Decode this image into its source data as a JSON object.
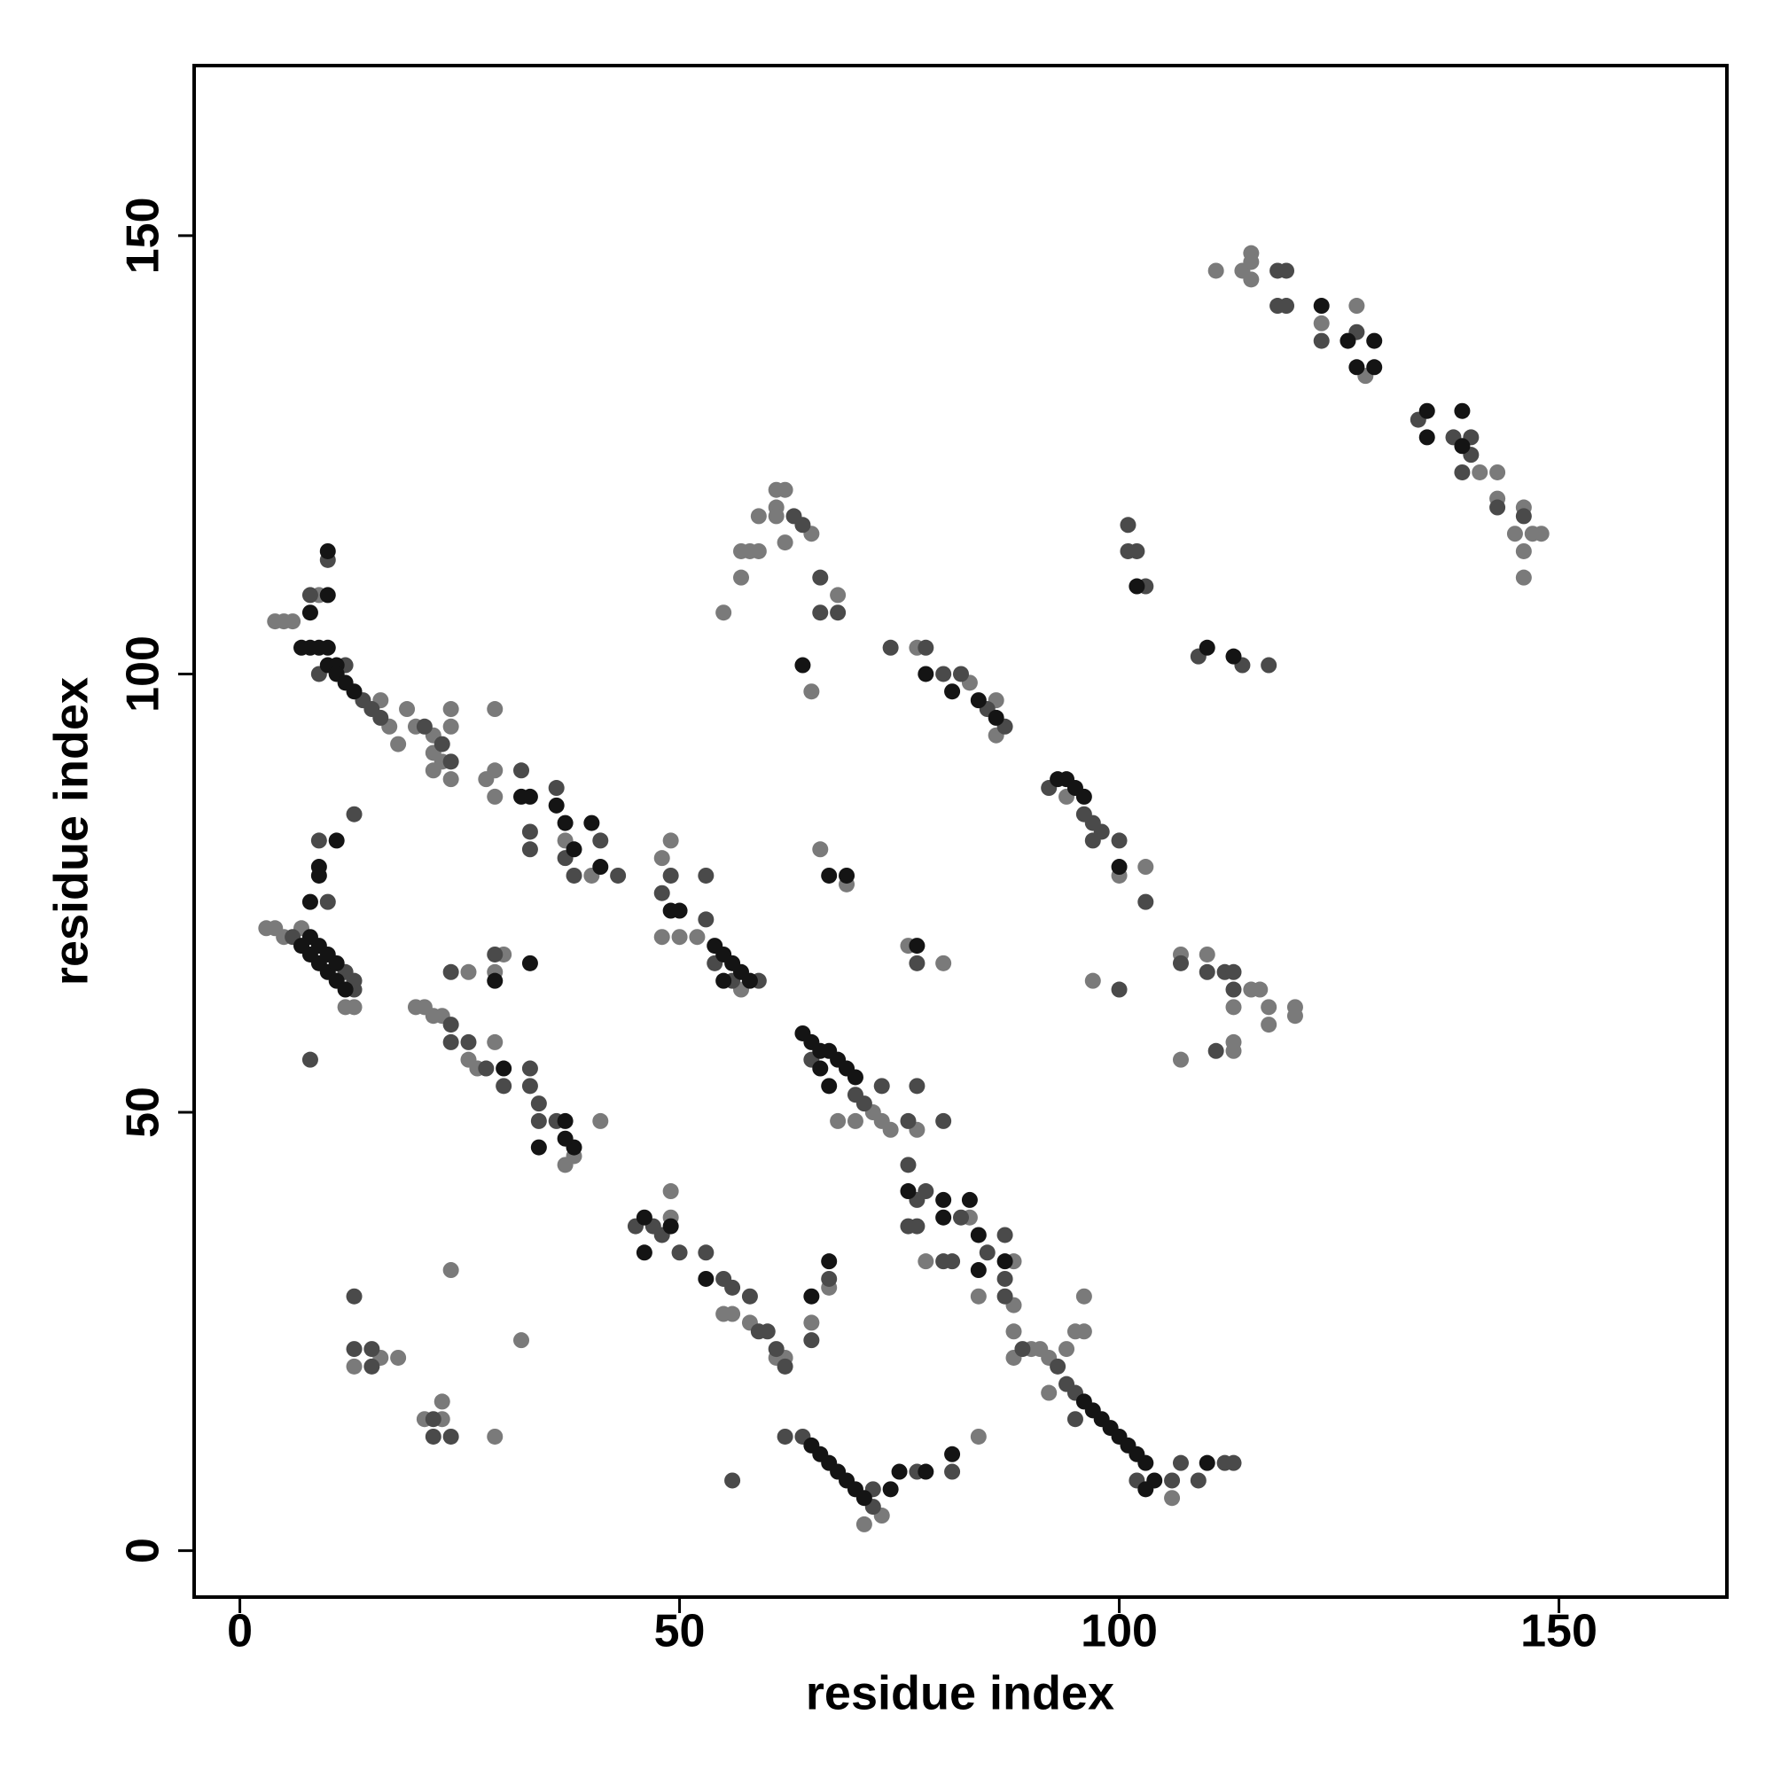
{
  "chart_data": {
    "type": "scatter",
    "xlabel": "residue index",
    "ylabel": "residue index",
    "xlim": [
      -5.2,
      169.1
    ],
    "ylim": [
      -5.3,
      169.4
    ],
    "xticks": [
      0,
      50,
      100,
      150
    ],
    "yticks": [
      0,
      50,
      100,
      150
    ],
    "series": [
      {
        "color": "#7a7a7a",
        "x": [
          3,
          4,
          5,
          7,
          12,
          13,
          4,
          5,
          6,
          16,
          17,
          9,
          19,
          20,
          22,
          23,
          24,
          24,
          24,
          22,
          22,
          29,
          18,
          28,
          29,
          29,
          40,
          37,
          48,
          49,
          48,
          50,
          52,
          57,
          20,
          21,
          22,
          23,
          26,
          27,
          29,
          37,
          38,
          41,
          26,
          29,
          30,
          72,
          73,
          74,
          70,
          77,
          68,
          83,
          88,
          78,
          88,
          84,
          88,
          90,
          91,
          92,
          94,
          95,
          96,
          92,
          106,
          88,
          96,
          49,
          49,
          55,
          56,
          58,
          61,
          62,
          71,
          73,
          84,
          65,
          67,
          16,
          13,
          18,
          21,
          23,
          23,
          24,
          29,
          32,
          55,
          57,
          57,
          58,
          59,
          59,
          61,
          61,
          62,
          61,
          62,
          65,
          68,
          65,
          66,
          69,
          77,
          83,
          86,
          86,
          94,
          100,
          103,
          76,
          80,
          97,
          107,
          110,
          113,
          115,
          116,
          117,
          117,
          120,
          120,
          107,
          113,
          113,
          111,
          114,
          115,
          115,
          115,
          127,
          128,
          123,
          141,
          143,
          143,
          146,
          145,
          146,
          147,
          148,
          146
        ],
        "values": [
          71,
          71,
          70,
          71,
          62,
          62,
          106,
          106,
          106,
          97,
          94,
          109,
          96,
          94,
          93,
          90,
          88,
          96,
          94,
          91,
          89,
          96,
          92,
          88,
          89,
          86,
          77,
          81,
          79,
          81,
          70,
          70,
          70,
          64,
          62,
          62,
          61,
          61,
          56,
          55,
          58,
          44,
          45,
          49,
          66,
          66,
          68,
          50,
          49,
          48,
          49,
          48,
          49,
          38,
          33,
          33,
          28,
          29,
          25,
          23,
          23,
          22,
          23,
          25,
          25,
          18,
          6,
          22,
          29,
          38,
          41,
          27,
          27,
          26,
          22,
          22,
          3,
          4,
          13,
          26,
          30,
          22,
          21,
          22,
          15,
          15,
          17,
          32,
          13,
          24,
          107,
          111,
          114,
          114,
          114,
          118,
          119,
          121,
          121,
          118,
          115,
          116,
          109,
          98,
          80,
          76,
          103,
          99,
          93,
          97,
          86,
          77,
          78,
          69,
          67,
          65,
          68,
          68,
          62,
          64,
          64,
          62,
          60,
          62,
          61,
          56,
          58,
          57,
          146,
          146,
          148,
          147,
          145,
          142,
          134,
          140,
          123,
          123,
          120,
          119,
          116,
          114,
          116,
          116,
          111
        ]
      },
      {
        "color": "#4a4a4a",
        "x": [
          6,
          13,
          13,
          12,
          10,
          9,
          13,
          8,
          14,
          15,
          16,
          12,
          9,
          8,
          10,
          21,
          23,
          24,
          32,
          33,
          33,
          36,
          37,
          38,
          41,
          43,
          49,
          48,
          53,
          53,
          54,
          56,
          59,
          24,
          24,
          26,
          28,
          30,
          33,
          33,
          34,
          34,
          36,
          24,
          29,
          65,
          70,
          71,
          73,
          77,
          76,
          80,
          76,
          77,
          78,
          82,
          85,
          87,
          76,
          77,
          80,
          81,
          87,
          87,
          89,
          93,
          94,
          95,
          95,
          102,
          106,
          107,
          109,
          112,
          113,
          45,
          47,
          48,
          50,
          53,
          55,
          56,
          58,
          59,
          60,
          61,
          62,
          62,
          64,
          72,
          72,
          77,
          81,
          56,
          65,
          67,
          13,
          13,
          15,
          15,
          22,
          24,
          22,
          63,
          64,
          66,
          66,
          68,
          78,
          74,
          80,
          82,
          85,
          87,
          77,
          92,
          96,
          97,
          98,
          100,
          103,
          97,
          107,
          110,
          112,
          113,
          113,
          100,
          111,
          101,
          101,
          102,
          103,
          109,
          114,
          117,
          118,
          119,
          118,
          119,
          123,
          127,
          134,
          138,
          139,
          140,
          143,
          146,
          140
        ],
        "values": [
          70,
          64,
          65,
          66,
          74,
          81,
          84,
          56,
          97,
          96,
          95,
          101,
          100,
          109,
          113,
          94,
          92,
          90,
          89,
          82,
          80,
          87,
          79,
          77,
          81,
          77,
          77,
          75,
          77,
          72,
          67,
          65,
          65,
          60,
          58,
          58,
          55,
          53,
          55,
          53,
          51,
          49,
          49,
          66,
          68,
          56,
          52,
          51,
          53,
          53,
          49,
          49,
          44,
          40,
          41,
          38,
          34,
          36,
          37,
          37,
          33,
          33,
          31,
          29,
          23,
          21,
          19,
          18,
          15,
          8,
          8,
          10,
          8,
          10,
          10,
          37,
          37,
          36,
          34,
          34,
          31,
          30,
          29,
          25,
          25,
          23,
          21,
          13,
          13,
          5,
          7,
          9,
          9,
          8,
          24,
          31,
          29,
          23,
          23,
          21,
          15,
          13,
          13,
          118,
          117,
          111,
          107,
          107,
          103,
          103,
          100,
          100,
          96,
          94,
          67,
          87,
          84,
          83,
          82,
          81,
          74,
          81,
          67,
          66,
          66,
          66,
          64,
          64,
          57,
          117,
          114,
          114,
          110,
          102,
          101,
          101,
          146,
          146,
          142,
          142,
          138,
          139,
          129,
          127,
          123,
          125,
          119,
          118,
          127
        ]
      },
      {
        "color": "#141414",
        "x": [
          7,
          8,
          9,
          10,
          11,
          12,
          8,
          9,
          10,
          11,
          8,
          9,
          9,
          11,
          7,
          8,
          9,
          10,
          10,
          11,
          11,
          12,
          13,
          10,
          10,
          8,
          32,
          33,
          36,
          37,
          40,
          38,
          41,
          49,
          50,
          54,
          55,
          56,
          57,
          58,
          55,
          29,
          30,
          33,
          34,
          37,
          38,
          37,
          64,
          65,
          66,
          67,
          68,
          69,
          70,
          66,
          67,
          77,
          76,
          80,
          83,
          80,
          84,
          84,
          87,
          96,
          97,
          98,
          99,
          100,
          101,
          102,
          103,
          103,
          104,
          110,
          46,
          46,
          49,
          53,
          65,
          66,
          67,
          68,
          69,
          70,
          71,
          74,
          75,
          78,
          81,
          65,
          67,
          64,
          67,
          69,
          78,
          81,
          84,
          86,
          93,
          94,
          95,
          96,
          100,
          102,
          110,
          113,
          123,
          126,
          127,
          129,
          129,
          135,
          135,
          139,
          139
        ],
        "values": [
          69,
          68,
          67,
          66,
          65,
          64,
          70,
          69,
          68,
          67,
          74,
          77,
          78,
          81,
          103,
          103,
          103,
          103,
          101,
          101,
          100,
          99,
          98,
          109,
          114,
          107,
          86,
          86,
          85,
          83,
          83,
          80,
          78,
          73,
          73,
          69,
          68,
          67,
          66,
          65,
          65,
          65,
          55,
          67,
          46,
          49,
          46,
          47,
          59,
          58,
          57,
          57,
          56,
          55,
          54,
          55,
          53,
          69,
          41,
          40,
          40,
          38,
          36,
          32,
          33,
          17,
          16,
          15,
          14,
          13,
          12,
          11,
          10,
          7,
          8,
          10,
          38,
          34,
          37,
          31,
          12,
          11,
          10,
          9,
          8,
          7,
          6,
          7,
          9,
          9,
          11,
          29,
          33,
          101,
          77,
          77,
          100,
          98,
          97,
          95,
          88,
          88,
          87,
          86,
          78,
          110,
          103,
          102,
          142,
          138,
          135,
          138,
          135,
          130,
          127,
          130,
          126
        ]
      }
    ]
  }
}
